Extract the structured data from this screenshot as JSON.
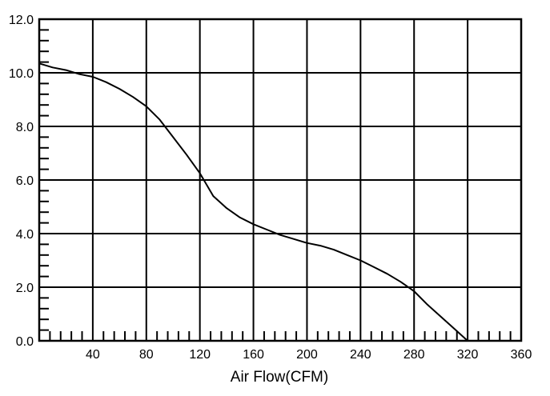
{
  "chart_data": {
    "type": "line",
    "title": "",
    "xlabel": "Air Flow(CFM)",
    "ylabel": "",
    "xlim": [
      0,
      360
    ],
    "ylim": [
      0,
      12
    ],
    "grid": true,
    "x_ticks": [
      "40",
      "80",
      "120",
      "160",
      "200",
      "240",
      "280",
      "320",
      "360"
    ],
    "y_ticks": [
      "0.0",
      "2.0",
      "4.0",
      "6.0",
      "8.0",
      "10.0",
      "12.0"
    ],
    "series": [
      {
        "x": [
          0,
          10,
          20,
          30,
          40,
          50,
          60,
          70,
          80,
          90,
          100,
          110,
          120,
          130,
          140,
          150,
          160,
          170,
          180,
          190,
          200,
          210,
          220,
          230,
          240,
          250,
          260,
          270,
          280,
          290,
          300,
          310,
          320
        ],
        "y": [
          10.35,
          10.2,
          10.1,
          9.95,
          9.85,
          9.65,
          9.4,
          9.1,
          8.75,
          8.25,
          7.6,
          6.95,
          6.25,
          5.4,
          4.95,
          4.6,
          4.35,
          4.15,
          3.95,
          3.8,
          3.65,
          3.55,
          3.4,
          3.2,
          3.0,
          2.75,
          2.5,
          2.2,
          1.85,
          1.35,
          0.9,
          0.45,
          0.0
        ]
      }
    ]
  }
}
